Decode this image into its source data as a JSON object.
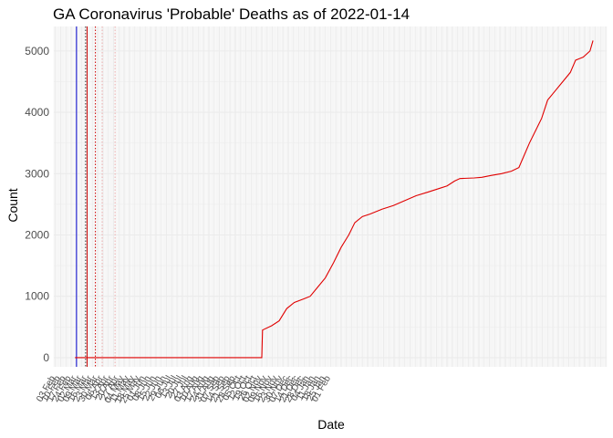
{
  "chart_data": {
    "type": "line",
    "title": "GA Coronavirus 'Probable' Deaths as of 2022-01-14",
    "xlabel": "Date",
    "ylabel": "Count",
    "x_range": [
      "2020-02-01",
      "2022-02-01"
    ],
    "ylim": [
      -150,
      5400
    ],
    "y_ticks": [
      0,
      1000,
      2000,
      3000,
      4000,
      5000
    ],
    "x_tick_labels": [
      "03 Feb",
      "10 Feb",
      "17 Feb",
      "24 Feb",
      "02 Mar",
      "09 Mar",
      "16 Mar",
      "23 Mar",
      "30 Mar",
      "06 Apr",
      "13 Apr",
      "20 Apr",
      "27 Apr",
      "04 May",
      "11 May",
      "18 May",
      "25 May",
      "01 Jun",
      "08 Jun",
      "15 Jun",
      "22 Jun",
      "29 Jun",
      "06 Jul",
      "13 Jul",
      "20 Jul",
      "27 Jul",
      "03 Aug",
      "10 Aug",
      "17 Aug",
      "24 Aug",
      "31 Aug",
      "07 Sep",
      "14 Sep",
      "21 Sep",
      "28 Sep",
      "05 Oct",
      "12 Oct",
      "19 Oct",
      "26 Oct",
      "02 Nov",
      "09 Nov",
      "16 Nov",
      "23 Nov",
      "30 Nov",
      "07 Dec",
      "14 Dec",
      "21 Dec",
      "28 Dec",
      "04 Jan",
      "11 Jan",
      "18 Jan",
      "25 Jan",
      "01 Feb"
    ],
    "grid": true,
    "legend": "none",
    "colors": {
      "series": "#e00000",
      "blue_vline": "#0000cc",
      "red_vline": "#cc0000",
      "dark_dotted": "#333333",
      "red_dotted": "#cc0000",
      "pink_dotted": "#f0b0b0",
      "grid": "#ebebeb",
      "text": "#4d4d4d"
    },
    "vertical_lines": [
      {
        "date": "2020-03-02",
        "style": "solid",
        "color": "#0000cc"
      },
      {
        "date": "2020-03-14",
        "style": "dotted",
        "color": "#333333"
      },
      {
        "date": "2020-03-16",
        "style": "solid",
        "color": "#cc0000"
      },
      {
        "date": "2020-03-27",
        "style": "dotted",
        "color": "#cc0000"
      },
      {
        "date": "2020-04-05",
        "style": "dotted",
        "color": "#f0b0b0"
      },
      {
        "date": "2020-04-22",
        "style": "dotted",
        "color": "#f0b0b0"
      }
    ],
    "series": [
      {
        "points": [
          [
            "2020-02-29",
            0
          ],
          [
            "2020-11-02",
            0
          ],
          [
            "2020-11-03",
            450
          ],
          [
            "2020-11-15",
            520
          ],
          [
            "2020-11-25",
            600
          ],
          [
            "2020-12-05",
            800
          ],
          [
            "2020-12-15",
            900
          ],
          [
            "2020-12-28",
            960
          ],
          [
            "2021-01-05",
            1000
          ],
          [
            "2021-01-15",
            1150
          ],
          [
            "2021-01-25",
            1300
          ],
          [
            "2021-02-05",
            1550
          ],
          [
            "2021-02-15",
            1800
          ],
          [
            "2021-02-25",
            2000
          ],
          [
            "2021-03-05",
            2200
          ],
          [
            "2021-03-15",
            2300
          ],
          [
            "2021-03-25",
            2340
          ],
          [
            "2021-04-10",
            2420
          ],
          [
            "2021-04-25",
            2480
          ],
          [
            "2021-05-10",
            2560
          ],
          [
            "2021-05-25",
            2640
          ],
          [
            "2021-06-10",
            2700
          ],
          [
            "2021-06-25",
            2760
          ],
          [
            "2021-07-05",
            2800
          ],
          [
            "2021-07-15",
            2880
          ],
          [
            "2021-07-22",
            2920
          ],
          [
            "2021-08-10",
            2930
          ],
          [
            "2021-08-20",
            2940
          ],
          [
            "2021-09-01",
            2970
          ],
          [
            "2021-09-15",
            3000
          ],
          [
            "2021-09-28",
            3040
          ],
          [
            "2021-10-08",
            3100
          ],
          [
            "2021-10-15",
            3300
          ],
          [
            "2021-10-22",
            3500
          ],
          [
            "2021-10-30",
            3700
          ],
          [
            "2021-11-07",
            3900
          ],
          [
            "2021-11-15",
            4200
          ],
          [
            "2021-11-25",
            4350
          ],
          [
            "2021-12-05",
            4500
          ],
          [
            "2021-12-15",
            4650
          ],
          [
            "2021-12-22",
            4850
          ],
          [
            "2022-01-01",
            4900
          ],
          [
            "2022-01-10",
            5000
          ],
          [
            "2022-01-14",
            5170
          ]
        ]
      }
    ]
  }
}
